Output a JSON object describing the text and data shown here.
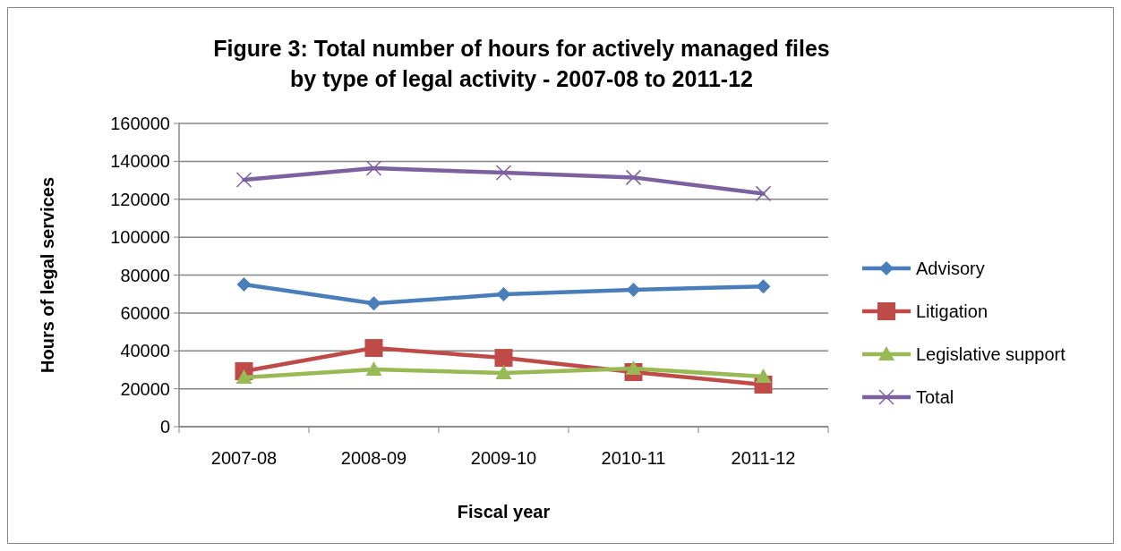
{
  "chart_data": {
    "type": "line",
    "title": "Figure 3: Total number of hours for actively managed files\nby type of legal activity - 2007-08 to 2011-12",
    "xlabel": "Fiscal year",
    "ylabel": "Hours of legal services",
    "categories": [
      "2007-08",
      "2008-09",
      "2009-10",
      "2010-11",
      "2011-12"
    ],
    "ylim": [
      0,
      160000
    ],
    "yticks": [
      0,
      20000,
      40000,
      60000,
      80000,
      100000,
      120000,
      140000,
      160000
    ],
    "grid": "y",
    "legend": "right",
    "series": [
      {
        "name": "Advisory",
        "color": "#4a7ebb",
        "marker": "diamond",
        "values": [
          75000,
          65000,
          69800,
          72200,
          74000
        ]
      },
      {
        "name": "Litigation",
        "color": "#be4b48",
        "marker": "square",
        "values": [
          29300,
          41500,
          36300,
          28800,
          22200
        ]
      },
      {
        "name": "Legislative support",
        "color": "#98b954",
        "marker": "triangle",
        "values": [
          26000,
          30200,
          28300,
          30700,
          26400
        ]
      },
      {
        "name": "Total",
        "color": "#7d60a0",
        "marker": "cross",
        "values": [
          130300,
          136400,
          134000,
          131500,
          123000
        ]
      }
    ]
  }
}
